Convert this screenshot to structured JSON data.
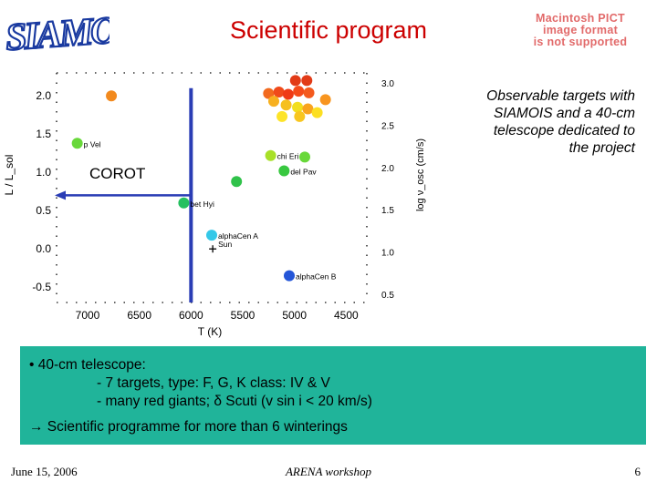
{
  "header": {
    "logo_text": "SIAMOIS",
    "title": "Scientific program",
    "pict_lines": [
      "Macintosh PICT",
      "image format",
      "is not supported"
    ]
  },
  "chart_data": {
    "type": "scatter",
    "title": "",
    "xlabel": "T (K)",
    "ylabel": "L / L_sol",
    "y2label": "log ν_osc (cm/s)",
    "x_reversed": true,
    "xlim": [
      7300,
      4300
    ],
    "ylim": [
      -0.7,
      2.3
    ],
    "xticks": [
      "7000",
      "6500",
      "6000",
      "5500",
      "5000",
      "4500"
    ],
    "yticks": [
      "2.0",
      "1.5",
      "1.0",
      "0.5",
      "0.0",
      "-0.5"
    ],
    "y2ticks": [
      "3.0",
      "2.5",
      "2.0",
      "1.5",
      "1.0",
      "0.5"
    ],
    "corot_label": "COROT",
    "corot_boundary": {
      "T": 6000,
      "L_max": 2.1
    },
    "corot_arrow_L": 0.7,
    "grid": false,
    "points": [
      {
        "T": 6770,
        "L": 2.0,
        "color": "#f28a1e"
      },
      {
        "T": 4990,
        "L": 2.2,
        "color": "#e23b17"
      },
      {
        "T": 4880,
        "L": 2.2,
        "color": "#e23b17"
      },
      {
        "T": 5250,
        "L": 2.03,
        "color": "#f26a1e"
      },
      {
        "T": 5150,
        "L": 2.05,
        "color": "#f04a1a"
      },
      {
        "T": 5060,
        "L": 2.02,
        "color": "#ef3a16"
      },
      {
        "T": 4960,
        "L": 2.06,
        "color": "#f54b1a"
      },
      {
        "T": 4860,
        "L": 2.04,
        "color": "#f45a1d"
      },
      {
        "T": 4700,
        "L": 1.95,
        "color": "#f8951f"
      },
      {
        "T": 5200,
        "L": 1.93,
        "color": "#f7b01f"
      },
      {
        "T": 5080,
        "L": 1.88,
        "color": "#f6c01f"
      },
      {
        "T": 4970,
        "L": 1.85,
        "color": "#f2de1d"
      },
      {
        "T": 4870,
        "L": 1.83,
        "color": "#f9a41e"
      },
      {
        "T": 4780,
        "L": 1.78,
        "color": "#fcdf22"
      },
      {
        "T": 5120,
        "L": 1.73,
        "color": "#fde428"
      },
      {
        "T": 4950,
        "L": 1.73,
        "color": "#f8c61f"
      },
      {
        "T": 7100,
        "L": 1.38,
        "label": "p Vel",
        "color": "#68d83a"
      },
      {
        "T": 5230,
        "L": 1.22,
        "label": "chi Eri",
        "color": "#a8e028"
      },
      {
        "T": 4900,
        "L": 1.2,
        "color": "#68d83a"
      },
      {
        "T": 5100,
        "L": 1.02,
        "label": "del Pav",
        "color": "#38c840"
      },
      {
        "T": 5560,
        "L": 0.88,
        "color": "#30c24a"
      },
      {
        "T": 6070,
        "L": 0.6,
        "label": "bet Hyi",
        "color": "#25c060"
      },
      {
        "T": 5790,
        "L": 0.0,
        "label": "Sun",
        "color": "#000000",
        "marker": "plus"
      },
      {
        "T": 5800,
        "L": 0.18,
        "label": "alphaCen A",
        "color": "#35c8e8"
      },
      {
        "T": 5050,
        "L": -0.35,
        "label": "alphaCen B",
        "color": "#2456d8"
      }
    ]
  },
  "observable_text": "Observable targets with SIAMOIS and a 40-cm telescope dedicated to the project",
  "green_box": {
    "line1": "• 40-cm telescope:",
    "line2": "- 7 targets, type: F, G, K class: IV & V",
    "line3": "- many red giants; δ Scuti (v sin i < 20 km/s)",
    "line4": "→ Scientific programme for more than 6 winterings"
  },
  "footer": {
    "date": "June 15, 2006",
    "event": "ARENA workshop",
    "page": "6"
  }
}
